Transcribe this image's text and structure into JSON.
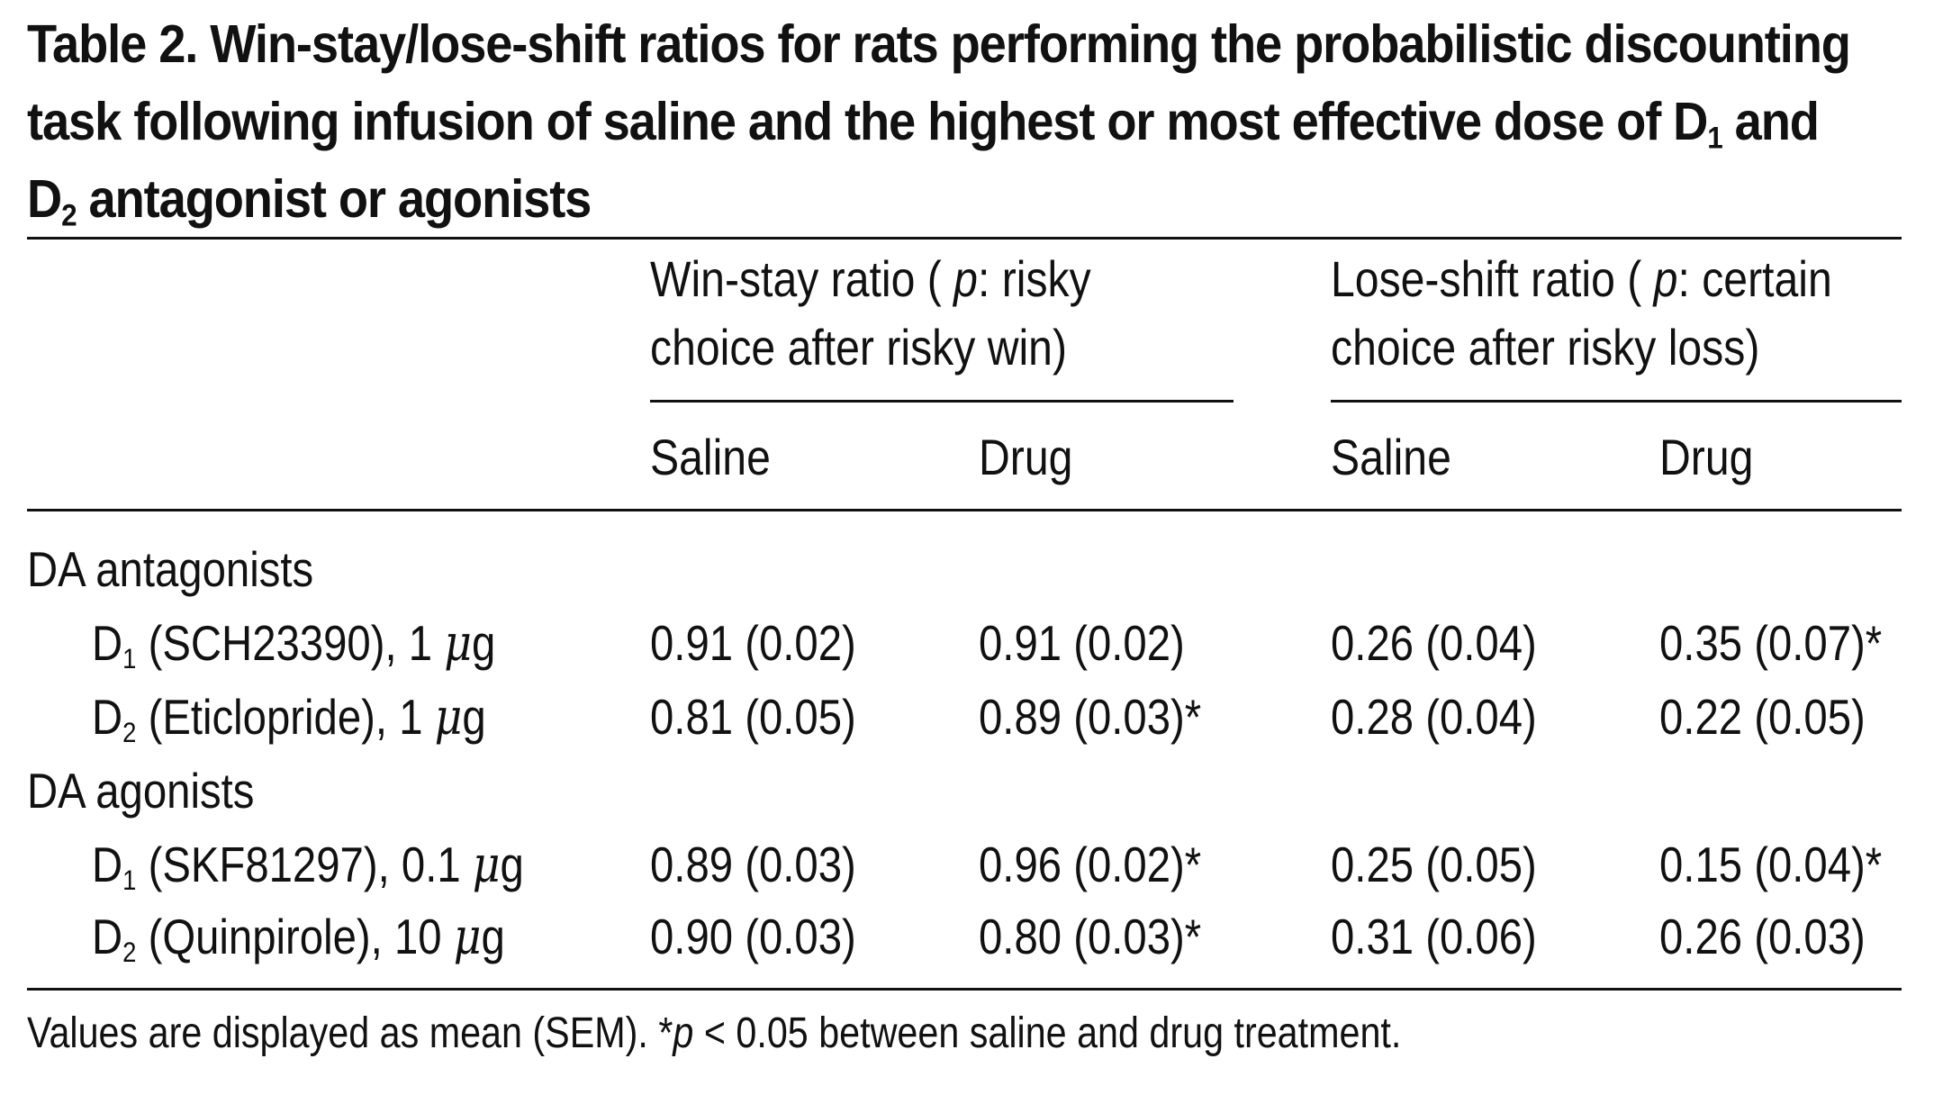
{
  "title": {
    "line1": "Table 2. Win-stay/lose-shift ratios for rats performing the probabilistic discounting",
    "line2_a": "task following infusion of saline and the highest or most effective dose of D",
    "line2_sub": "1",
    "line2_b": " and",
    "line3_a": "D",
    "line3_sub": "2",
    "line3_b": " antagonist or agonists"
  },
  "header": {
    "winstay_line1_a": "Win-stay ratio ( ",
    "winstay_p": "p",
    "winstay_line1_b": ": risky",
    "winstay_line2": "choice after risky win)",
    "loseshift_line1_a": "Lose-shift ratio ( ",
    "loseshift_p": "p",
    "loseshift_line1_b": ": certain",
    "loseshift_line2": "choice after risky loss)",
    "saline": "Saline",
    "drug": "Drug"
  },
  "groups": [
    {
      "label": "DA antagonists",
      "rows": [
        {
          "receptor": "D",
          "sub": "1",
          "drug": " (SCH23390), 1 ",
          "unit_mu": "μ",
          "unit": "g",
          "ws_saline": "0.91 (0.02)",
          "ws_drug": "0.91 (0.02)",
          "ls_saline": "0.26 (0.04)",
          "ls_drug": "0.35 (0.07)*"
        },
        {
          "receptor": "D",
          "sub": "2",
          "drug": " (Eticlopride), 1 ",
          "unit_mu": "μ",
          "unit": "g",
          "ws_saline": "0.81 (0.05)",
          "ws_drug": "0.89 (0.03)*",
          "ls_saline": "0.28 (0.04)",
          "ls_drug": "0.22 (0.05)"
        }
      ]
    },
    {
      "label": "DA agonists",
      "rows": [
        {
          "receptor": "D",
          "sub": "1",
          "drug": " (SKF81297), 0.1 ",
          "unit_mu": "μ",
          "unit": "g",
          "ws_saline": "0.89 (0.03)",
          "ws_drug": "0.96 (0.02)*",
          "ls_saline": "0.25 (0.05)",
          "ls_drug": "0.15 (0.04)*"
        },
        {
          "receptor": "D",
          "sub": "2",
          "drug": " (Quinpirole), 10 ",
          "unit_mu": "μ",
          "unit": "g",
          "ws_saline": "0.90 (0.03)",
          "ws_drug": "0.80 (0.03)*",
          "ls_saline": "0.31 (0.06)",
          "ls_drug": "0.26 (0.03)"
        }
      ]
    }
  ],
  "footnote": {
    "a": "Values are displayed as mean (SEM). *",
    "p": "p",
    "b": " < 0.05 between saline and drug treatment."
  }
}
